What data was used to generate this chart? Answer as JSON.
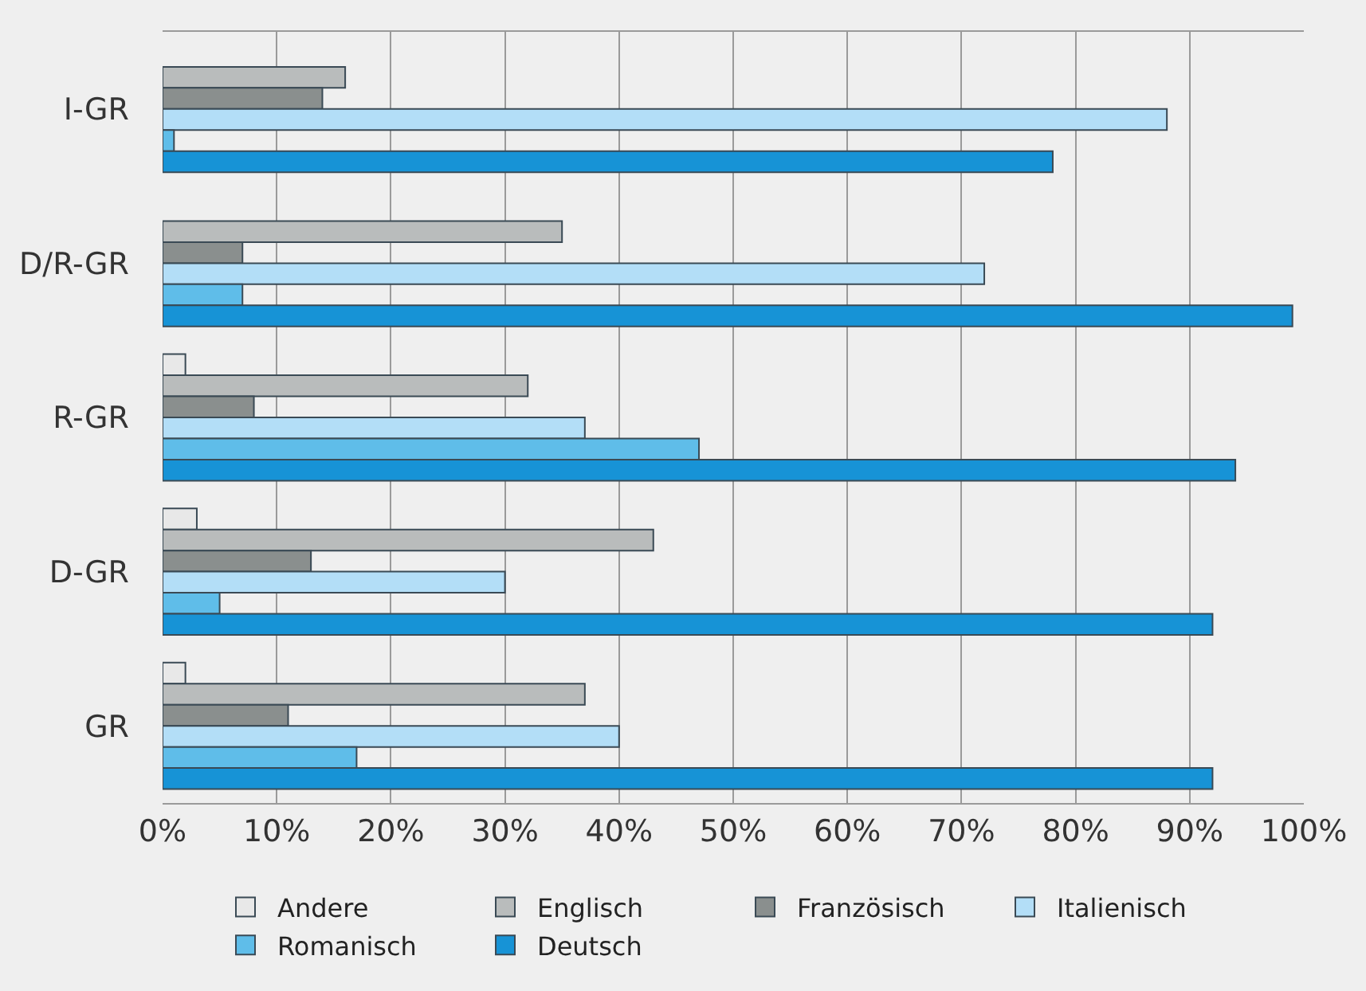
{
  "chart_data": {
    "type": "bar",
    "orientation": "horizontal",
    "categories": [
      "I-GR",
      "D/R-GR",
      "R-GR",
      "D-GR",
      "GR"
    ],
    "series": [
      {
        "name": "Andere",
        "color": "#e8e8e8",
        "values": [
          0,
          0,
          2,
          3,
          2
        ]
      },
      {
        "name": "Englisch",
        "color": "#b9bcbc",
        "values": [
          16,
          35,
          32,
          43,
          37
        ]
      },
      {
        "name": "Französisch",
        "color": "#8a8f8e",
        "values": [
          14,
          7,
          8,
          13,
          11
        ]
      },
      {
        "name": "Italienisch",
        "color": "#b3def7",
        "values": [
          88,
          72,
          37,
          30,
          40
        ]
      },
      {
        "name": "Romanisch",
        "color": "#5fbde9",
        "values": [
          1,
          7,
          47,
          5,
          17
        ]
      },
      {
        "name": "Deutsch",
        "color": "#1793d6",
        "values": [
          78,
          99,
          94,
          92,
          92
        ]
      }
    ],
    "xlim": [
      0,
      100
    ],
    "xticks": [
      {
        "value": 0,
        "label": "0%"
      },
      {
        "value": 10,
        "label": "10%"
      },
      {
        "value": 20,
        "label": "20%"
      },
      {
        "value": 30,
        "label": "30%"
      },
      {
        "value": 40,
        "label": "40%"
      },
      {
        "value": 50,
        "label": "50%"
      },
      {
        "value": 60,
        "label": "60%"
      },
      {
        "value": 70,
        "label": "70%"
      },
      {
        "value": 80,
        "label": "80%"
      },
      {
        "value": 90,
        "label": "90%"
      },
      {
        "value": 100,
        "label": "100%"
      }
    ],
    "grid": "x",
    "legend": "bottom"
  }
}
